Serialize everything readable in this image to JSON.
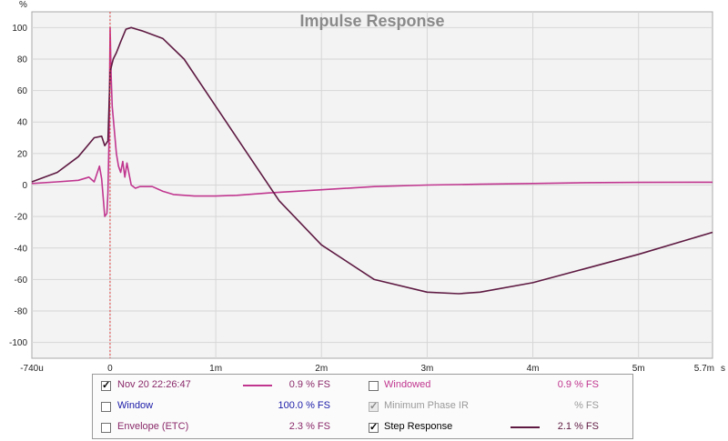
{
  "colors": {
    "impulse": "#c0368f",
    "step": "#5e1a42",
    "marker": "#e04040",
    "grid": "#d6d6d6",
    "plot_bg": "#f3f3f3",
    "axis_text": "#222222",
    "title": "#8a8a8a"
  },
  "chart_data": {
    "type": "line",
    "title": "Impulse Response",
    "ylabel": "%",
    "xlabel": "",
    "x_unit_label": "s",
    "xlim": [
      -0.74,
      5.7
    ],
    "ylim": [
      -110,
      110
    ],
    "x_ticks": [
      {
        "value": -0.74,
        "label": "-740u"
      },
      {
        "value": 0,
        "label": "0"
      },
      {
        "value": 1,
        "label": "1m"
      },
      {
        "value": 2,
        "label": "2m"
      },
      {
        "value": 3,
        "label": "3m"
      },
      {
        "value": 4,
        "label": "4m"
      },
      {
        "value": 5,
        "label": "5m"
      },
      {
        "value": 5.7,
        "label": "5.7m"
      }
    ],
    "y_ticks": [
      100,
      80,
      60,
      40,
      20,
      0,
      -20,
      -40,
      -60,
      -80,
      -100
    ],
    "grid": true,
    "marker_x": 0,
    "series": [
      {
        "name": "Nov 20 22:26:47",
        "color_key": "impulse",
        "x": [
          -0.74,
          -0.5,
          -0.3,
          -0.2,
          -0.15,
          -0.1,
          -0.08,
          -0.05,
          -0.03,
          -0.02,
          -0.01,
          0.0,
          0.01,
          0.02,
          0.04,
          0.06,
          0.08,
          0.1,
          0.12,
          0.14,
          0.16,
          0.2,
          0.24,
          0.28,
          0.32,
          0.4,
          0.5,
          0.6,
          0.8,
          1.0,
          1.2,
          1.5,
          2.0,
          2.5,
          3.0,
          3.5,
          4.0,
          4.5,
          5.0,
          5.7
        ],
        "y": [
          1,
          2,
          3,
          5,
          2,
          12,
          4,
          -20,
          -18,
          -5,
          30,
          100,
          70,
          50,
          35,
          20,
          12,
          8,
          15,
          5,
          14,
          0,
          -2,
          -1,
          -1,
          -1,
          -4,
          -6,
          -7,
          -7,
          -6.5,
          -5,
          -3,
          -1,
          0,
          0.5,
          1,
          1.5,
          1.7,
          1.8
        ]
      },
      {
        "name": "Step Response",
        "color_key": "step",
        "x": [
          -0.74,
          -0.5,
          -0.3,
          -0.15,
          -0.08,
          -0.05,
          -0.02,
          0.0,
          0.03,
          0.06,
          0.1,
          0.15,
          0.2,
          0.25,
          0.3,
          0.5,
          0.7,
          1.0,
          1.3,
          1.6,
          2.0,
          2.5,
          3.0,
          3.3,
          3.5,
          4.0,
          4.5,
          5.0,
          5.7
        ],
        "y": [
          2,
          8,
          18,
          30,
          31,
          25,
          28,
          72,
          80,
          84,
          91,
          99,
          100,
          99,
          98,
          93,
          80,
          50,
          20,
          -10,
          -38,
          -60,
          -68,
          -69,
          -68,
          -62,
          -53,
          -44,
          -30
        ]
      }
    ]
  },
  "legend": {
    "rows": [
      {
        "left": {
          "label": "Nov 20 22:26:47",
          "checked": true,
          "disabled": false,
          "swatch_key": "impulse",
          "value": "0.9 % FS",
          "label_color": "#8a2a6a",
          "value_color": "#8a2a6a"
        },
        "right": {
          "label": "Windowed",
          "checked": false,
          "disabled": false,
          "swatch_key": "",
          "value": "0.9 % FS",
          "label_color": "#c0368f",
          "value_color": "#c0368f"
        }
      },
      {
        "left": {
          "label": "Window",
          "checked": false,
          "disabled": false,
          "swatch_key": "",
          "value": "100.0 % FS",
          "label_color": "#1a1aa8",
          "value_color": "#1a1aa8"
        },
        "right": {
          "label": "Minimum Phase IR",
          "checked": true,
          "disabled": true,
          "swatch_key": "",
          "value": "% FS",
          "label_color": "#9a9a9a",
          "value_color": "#9a9a9a"
        }
      },
      {
        "left": {
          "label": "Envelope (ETC)",
          "checked": false,
          "disabled": false,
          "swatch_key": "",
          "value": "2.3 % FS",
          "label_color": "#8a2a6a",
          "value_color": "#8a2a6a"
        },
        "right": {
          "label": "Step Response",
          "checked": true,
          "disabled": false,
          "swatch_key": "step",
          "value": "2.1 % FS",
          "label_color": "#000000",
          "value_color": "#5e1a42"
        }
      }
    ]
  }
}
